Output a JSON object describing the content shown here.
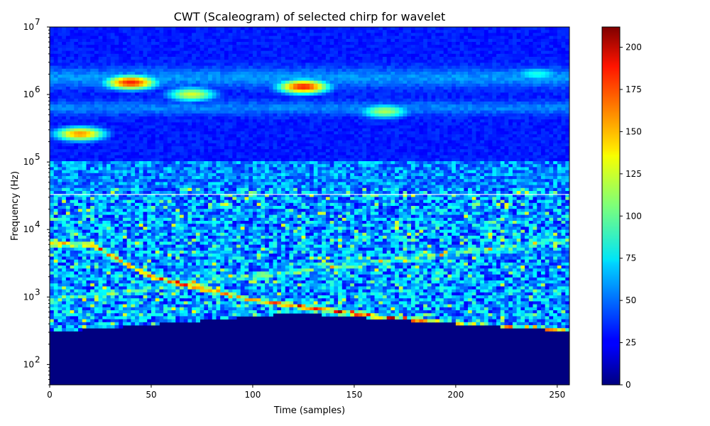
{
  "chart_data": {
    "type": "heatmap",
    "title": "CWT (Scaleogram) of selected chirp for wavelet",
    "xlabel": "Time (samples)",
    "ylabel": "Frequency (Hz)",
    "xlim": [
      0,
      256
    ],
    "ylim": [
      50,
      10000000
    ],
    "yscale": "log",
    "grid": false,
    "x_ticks": [
      0,
      50,
      100,
      150,
      200,
      250
    ],
    "y_ticks": [
      {
        "value": 100,
        "base": "10",
        "exp": "2"
      },
      {
        "value": 1000,
        "base": "10",
        "exp": "3"
      },
      {
        "value": 10000,
        "base": "10",
        "exp": "4"
      },
      {
        "value": 100000,
        "base": "10",
        "exp": "5"
      },
      {
        "value": 1000000,
        "base": "10",
        "exp": "6"
      },
      {
        "value": 10000000,
        "base": "10",
        "exp": "7"
      }
    ],
    "colormap": "jet",
    "colorbar": {
      "range": [
        0,
        212
      ],
      "ticks": [
        0,
        25,
        50,
        75,
        100,
        125,
        150,
        175,
        200
      ],
      "placement": "right"
    },
    "features": {
      "cutoff_frequency_start": 300,
      "cutoff_frequency_peak": 580,
      "cutoff_peak_time": 122,
      "cutoff_frequency_end": 310,
      "chirp_ridge": [
        {
          "t": 20,
          "f": 6000
        },
        {
          "t": 50,
          "f": 2000
        },
        {
          "t": 100,
          "f": 900
        },
        {
          "t": 150,
          "f": 560
        },
        {
          "t": 200,
          "f": 390
        },
        {
          "t": 256,
          "f": 310
        }
      ],
      "hotspots": [
        {
          "t": 40,
          "f": 1500000,
          "value": 180
        },
        {
          "t": 125,
          "f": 1300000,
          "value": 180
        },
        {
          "t": 15,
          "f": 260000,
          "value": 155
        },
        {
          "t": 70,
          "f": 1000000,
          "value": 125
        },
        {
          "t": 165,
          "f": 560000,
          "value": 115
        },
        {
          "t": 240,
          "f": 2000000,
          "value": 85
        }
      ],
      "white_line_frequency": 33000
    }
  }
}
